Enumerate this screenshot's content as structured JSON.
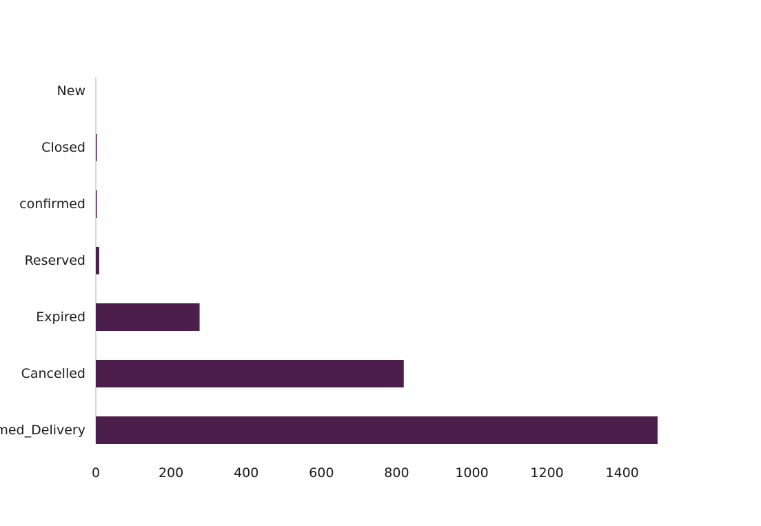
{
  "chart_data": {
    "type": "bar",
    "orientation": "horizontal",
    "categories": [
      "New",
      "Closed",
      "confirmed",
      "Reserved",
      "Expired",
      "Cancelled",
      "Confirmed_Delivery"
    ],
    "series": [
      {
        "values": [
          0,
          1,
          1,
          9,
          276,
          819,
          1494
        ]
      }
    ],
    "bar_color": "#4b1e4b",
    "xlim": [
      0,
      1500
    ],
    "x_ticks": [
      0,
      200,
      400,
      600,
      800,
      1000,
      1200,
      1400
    ],
    "x_tick_labels": [
      "0",
      "200",
      "400",
      "600",
      "800",
      "1000",
      "1200",
      "1400"
    ],
    "grid": false,
    "title": "",
    "xlabel": "",
    "ylabel": ""
  }
}
